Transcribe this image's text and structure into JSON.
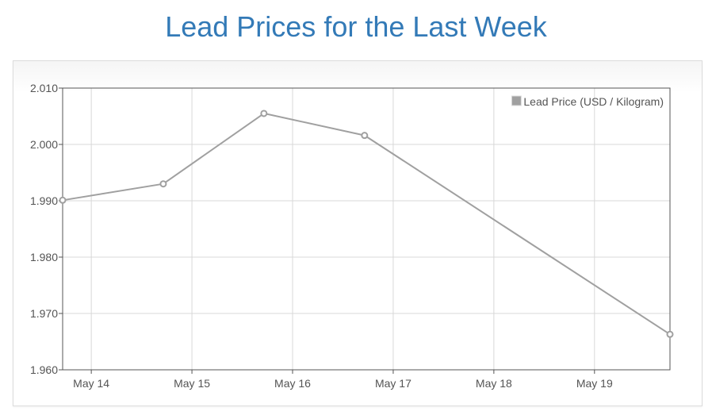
{
  "page": {
    "title": "Lead Prices for the Last Week"
  },
  "colors": {
    "title": "#337ab7",
    "series": "#a0a0a0",
    "grid": "#d8d8d8",
    "axis": "#545454"
  },
  "chart_data": {
    "type": "line",
    "title": "",
    "xlabel": "",
    "ylabel": "",
    "x_axis": {
      "type": "date",
      "min": "2024-05-13T17:10",
      "max": "2024-05-19T18:00",
      "tick_values": [
        "2024-05-14",
        "2024-05-15",
        "2024-05-16",
        "2024-05-17",
        "2024-05-18",
        "2024-05-19"
      ],
      "tick_labels": [
        "May 14",
        "May 15",
        "May 16",
        "May 17",
        "May 18",
        "May 19"
      ]
    },
    "y_axis": {
      "min": 1.96,
      "max": 2.01,
      "ticks": [
        1.96,
        1.97,
        1.98,
        1.99,
        2.0,
        2.01
      ],
      "tick_labels": [
        "1.960",
        "1.970",
        "1.980",
        "1.990",
        "2.000",
        "2.010"
      ]
    },
    "grid": true,
    "legend": {
      "position": "top-right",
      "entries": [
        "Lead Price (USD / Kilogram)"
      ]
    },
    "series": [
      {
        "name": "Lead Price (USD / Kilogram)",
        "color": "#a0a0a0",
        "points": [
          {
            "x": "2024-05-13T17:10",
            "y": 1.9901
          },
          {
            "x": "2024-05-14T17:10",
            "y": 1.993
          },
          {
            "x": "2024-05-15T17:10",
            "y": 2.0055
          },
          {
            "x": "2024-05-16T17:10",
            "y": 2.0016
          },
          {
            "x": "2024-05-19T18:00",
            "y": 1.9663
          }
        ]
      }
    ]
  }
}
